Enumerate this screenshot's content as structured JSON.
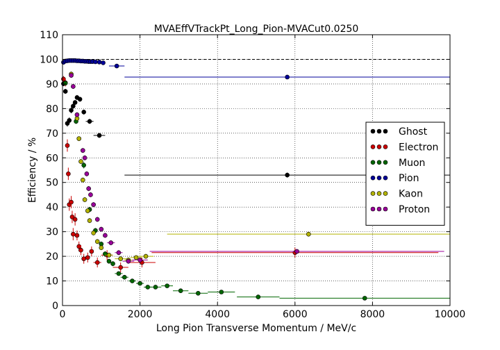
{
  "chart_data": {
    "type": "scatter",
    "title": "MVAEffVTrackPt_Long_Pion-MVACut0.0250",
    "xlabel": "Long Pion Transverse Momentum / MeV/c",
    "ylabel": "Efficiency / %",
    "xlim": [
      0,
      10000
    ],
    "ylim": [
      0,
      110
    ],
    "xticks": [
      "0",
      "2000",
      "4000",
      "6000",
      "8000",
      "10000"
    ],
    "yticks": [
      "0",
      "10",
      "20",
      "30",
      "40",
      "50",
      "60",
      "70",
      "80",
      "90",
      "100",
      "110"
    ],
    "grid": true,
    "reference_line": 100,
    "legend_position": "right",
    "series": [
      {
        "name": "Ghost",
        "color": "#000000",
        "points": [
          {
            "x": 25,
            "y": 90.1,
            "xerr": 25,
            "yerr": 1.0
          },
          {
            "x": 75,
            "y": 87.0,
            "xerr": 25,
            "yerr": 1.0
          },
          {
            "x": 125,
            "y": 74.0,
            "xerr": 25,
            "yerr": 1.3
          },
          {
            "x": 175,
            "y": 75.2,
            "xerr": 25,
            "yerr": 1.2
          },
          {
            "x": 225,
            "y": 79.3,
            "xerr": 25,
            "yerr": 1.2
          },
          {
            "x": 275,
            "y": 81.0,
            "xerr": 25,
            "yerr": 1.0
          },
          {
            "x": 325,
            "y": 82.5,
            "xerr": 25,
            "yerr": 1.0
          },
          {
            "x": 375,
            "y": 84.5,
            "xerr": 25,
            "yerr": 1.0
          },
          {
            "x": 450,
            "y": 83.8,
            "xerr": 50,
            "yerr": 1.0
          },
          {
            "x": 550,
            "y": 78.6,
            "xerr": 50,
            "yerr": 1.0
          },
          {
            "x": 700,
            "y": 74.8,
            "xerr": 100,
            "yerr": 1.0
          },
          {
            "x": 950,
            "y": 69.1,
            "xerr": 150,
            "yerr": 1.0
          },
          {
            "x": 5800,
            "y": 53.0,
            "xerr": 4200,
            "yerr": 1.0
          }
        ]
      },
      {
        "name": "Electron",
        "color": "#cc0000",
        "points": [
          {
            "x": 25,
            "y": 92.0,
            "xerr": 25,
            "yerr": 1.2
          },
          {
            "x": 75,
            "y": 90.5,
            "xerr": 25,
            "yerr": 1.5
          },
          {
            "x": 125,
            "y": 65.0,
            "xerr": 25,
            "yerr": 2.5
          },
          {
            "x": 150,
            "y": 53.5,
            "xerr": 25,
            "yerr": 2.5
          },
          {
            "x": 175,
            "y": 41.0,
            "xerr": 25,
            "yerr": 2.5
          },
          {
            "x": 225,
            "y": 42.0,
            "xerr": 25,
            "yerr": 2.5
          },
          {
            "x": 250,
            "y": 36.0,
            "xerr": 25,
            "yerr": 2.5
          },
          {
            "x": 275,
            "y": 29.0,
            "xerr": 25,
            "yerr": 2.5
          },
          {
            "x": 325,
            "y": 35.0,
            "xerr": 25,
            "yerr": 2.5
          },
          {
            "x": 375,
            "y": 28.5,
            "xerr": 25,
            "yerr": 2.0
          },
          {
            "x": 425,
            "y": 24.0,
            "xerr": 25,
            "yerr": 2.0
          },
          {
            "x": 475,
            "y": 22.5,
            "xerr": 25,
            "yerr": 2.0
          },
          {
            "x": 550,
            "y": 19.0,
            "xerr": 50,
            "yerr": 2.0
          },
          {
            "x": 650,
            "y": 19.5,
            "xerr": 50,
            "yerr": 2.0
          },
          {
            "x": 750,
            "y": 22.0,
            "xerr": 50,
            "yerr": 2.0
          },
          {
            "x": 900,
            "y": 17.5,
            "xerr": 100,
            "yerr": 2.0
          },
          {
            "x": 1150,
            "y": 20.5,
            "xerr": 150,
            "yerr": 2.0
          },
          {
            "x": 1500,
            "y": 15.5,
            "xerr": 200,
            "yerr": 2.0
          },
          {
            "x": 2050,
            "y": 17.5,
            "xerr": 350,
            "yerr": 2.0
          },
          {
            "x": 6000,
            "y": 21.5,
            "xerr": 3700,
            "yerr": 2.0
          }
        ]
      },
      {
        "name": "Muon",
        "color": "#006600",
        "points": [
          {
            "x": 75,
            "y": 90.3,
            "xerr": 25,
            "yerr": 0.8
          },
          {
            "x": 350,
            "y": 74.8,
            "xerr": 25,
            "yerr": 1.0
          },
          {
            "x": 550,
            "y": 57.0,
            "xerr": 50,
            "yerr": 1.3
          },
          {
            "x": 700,
            "y": 39.0,
            "xerr": 50,
            "yerr": 1.0
          },
          {
            "x": 850,
            "y": 30.5,
            "xerr": 50,
            "yerr": 1.0
          },
          {
            "x": 1000,
            "y": 25.0,
            "xerr": 50,
            "yerr": 1.0
          },
          {
            "x": 1100,
            "y": 21.0,
            "xerr": 50,
            "yerr": 1.0
          },
          {
            "x": 1200,
            "y": 18.0,
            "xerr": 50,
            "yerr": 1.0
          },
          {
            "x": 1300,
            "y": 17.0,
            "xerr": 50,
            "yerr": 1.0
          },
          {
            "x": 1450,
            "y": 13.0,
            "xerr": 100,
            "yerr": 0.8
          },
          {
            "x": 1600,
            "y": 11.5,
            "xerr": 100,
            "yerr": 0.8
          },
          {
            "x": 1800,
            "y": 10.0,
            "xerr": 100,
            "yerr": 0.8
          },
          {
            "x": 2000,
            "y": 9.0,
            "xerr": 100,
            "yerr": 0.7
          },
          {
            "x": 2200,
            "y": 7.5,
            "xerr": 100,
            "yerr": 0.7
          },
          {
            "x": 2400,
            "y": 7.5,
            "xerr": 150,
            "yerr": 0.6
          },
          {
            "x": 2700,
            "y": 8.0,
            "xerr": 150,
            "yerr": 0.6
          },
          {
            "x": 3050,
            "y": 6.0,
            "xerr": 200,
            "yerr": 0.5
          },
          {
            "x": 3500,
            "y": 5.0,
            "xerr": 250,
            "yerr": 0.5
          },
          {
            "x": 4100,
            "y": 5.5,
            "xerr": 350,
            "yerr": 0.5
          },
          {
            "x": 5050,
            "y": 3.5,
            "xerr": 550,
            "yerr": 0.4
          },
          {
            "x": 7800,
            "y": 3.0,
            "xerr": 2200,
            "yerr": 0.4
          }
        ]
      },
      {
        "name": "Pion",
        "color": "#000099",
        "points": [
          {
            "x": 25,
            "y": 98.8,
            "xerr": 25,
            "yerr": 0.2
          },
          {
            "x": 75,
            "y": 99.3,
            "xerr": 25,
            "yerr": 0.2
          },
          {
            "x": 125,
            "y": 99.4,
            "xerr": 25,
            "yerr": 0.2
          },
          {
            "x": 175,
            "y": 99.5,
            "xerr": 25,
            "yerr": 0.2
          },
          {
            "x": 225,
            "y": 99.5,
            "xerr": 25,
            "yerr": 0.2
          },
          {
            "x": 275,
            "y": 99.5,
            "xerr": 25,
            "yerr": 0.2
          },
          {
            "x": 325,
            "y": 99.5,
            "xerr": 25,
            "yerr": 0.2
          },
          {
            "x": 375,
            "y": 99.4,
            "xerr": 25,
            "yerr": 0.2
          },
          {
            "x": 425,
            "y": 99.4,
            "xerr": 25,
            "yerr": 0.2
          },
          {
            "x": 475,
            "y": 99.3,
            "xerr": 25,
            "yerr": 0.2
          },
          {
            "x": 525,
            "y": 99.3,
            "xerr": 25,
            "yerr": 0.2
          },
          {
            "x": 575,
            "y": 99.2,
            "xerr": 25,
            "yerr": 0.2
          },
          {
            "x": 625,
            "y": 99.2,
            "xerr": 25,
            "yerr": 0.2
          },
          {
            "x": 675,
            "y": 99.1,
            "xerr": 25,
            "yerr": 0.2
          },
          {
            "x": 725,
            "y": 99.1,
            "xerr": 25,
            "yerr": 0.2
          },
          {
            "x": 775,
            "y": 99.1,
            "xerr": 25,
            "yerr": 0.2
          },
          {
            "x": 850,
            "y": 99.0,
            "xerr": 50,
            "yerr": 0.2
          },
          {
            "x": 950,
            "y": 98.9,
            "xerr": 50,
            "yerr": 0.2
          },
          {
            "x": 1050,
            "y": 98.6,
            "xerr": 50,
            "yerr": 0.2
          },
          {
            "x": 1400,
            "y": 97.3,
            "xerr": 200,
            "yerr": 0.3
          },
          {
            "x": 5800,
            "y": 92.8,
            "xerr": 4200,
            "yerr": 0.5
          }
        ]
      },
      {
        "name": "Kaon",
        "color": "#b3b300",
        "points": [
          {
            "x": 225,
            "y": 94.0,
            "xerr": 25,
            "yerr": 1.0
          },
          {
            "x": 375,
            "y": 76.0,
            "xerr": 25,
            "yerr": 1.0
          },
          {
            "x": 425,
            "y": 67.8,
            "xerr": 25,
            "yerr": 1.0
          },
          {
            "x": 475,
            "y": 58.5,
            "xerr": 25,
            "yerr": 1.0
          },
          {
            "x": 525,
            "y": 51.0,
            "xerr": 25,
            "yerr": 1.0
          },
          {
            "x": 575,
            "y": 43.0,
            "xerr": 25,
            "yerr": 1.0
          },
          {
            "x": 650,
            "y": 38.5,
            "xerr": 50,
            "yerr": 1.0
          },
          {
            "x": 700,
            "y": 34.5,
            "xerr": 50,
            "yerr": 1.0
          },
          {
            "x": 800,
            "y": 29.5,
            "xerr": 50,
            "yerr": 1.0
          },
          {
            "x": 900,
            "y": 26.0,
            "xerr": 50,
            "yerr": 1.0
          },
          {
            "x": 1000,
            "y": 23.5,
            "xerr": 50,
            "yerr": 1.0
          },
          {
            "x": 1200,
            "y": 20.5,
            "xerr": 100,
            "yerr": 1.0
          },
          {
            "x": 1500,
            "y": 19.0,
            "xerr": 150,
            "yerr": 1.0
          },
          {
            "x": 1700,
            "y": 18.5,
            "xerr": 100,
            "yerr": 1.0
          },
          {
            "x": 1900,
            "y": 19.5,
            "xerr": 150,
            "yerr": 1.0
          },
          {
            "x": 2150,
            "y": 20.0,
            "xerr": 200,
            "yerr": 1.0
          },
          {
            "x": 6350,
            "y": 29.0,
            "xerr": 3650,
            "yerr": 1.0
          }
        ]
      },
      {
        "name": "Proton",
        "color": "#990099",
        "points": [
          {
            "x": 225,
            "y": 93.5,
            "xerr": 25,
            "yerr": 1.0
          },
          {
            "x": 275,
            "y": 89.0,
            "xerr": 25,
            "yerr": 1.0
          },
          {
            "x": 375,
            "y": 77.5,
            "xerr": 25,
            "yerr": 1.0
          },
          {
            "x": 525,
            "y": 63.0,
            "xerr": 25,
            "yerr": 1.0
          },
          {
            "x": 575,
            "y": 60.0,
            "xerr": 25,
            "yerr": 1.0
          },
          {
            "x": 625,
            "y": 53.5,
            "xerr": 25,
            "yerr": 1.0
          },
          {
            "x": 675,
            "y": 47.5,
            "xerr": 25,
            "yerr": 1.0
          },
          {
            "x": 725,
            "y": 45.0,
            "xerr": 25,
            "yerr": 1.0
          },
          {
            "x": 800,
            "y": 41.0,
            "xerr": 50,
            "yerr": 1.0
          },
          {
            "x": 900,
            "y": 35.0,
            "xerr": 50,
            "yerr": 1.0
          },
          {
            "x": 1000,
            "y": 31.0,
            "xerr": 50,
            "yerr": 1.0
          },
          {
            "x": 1100,
            "y": 28.5,
            "xerr": 50,
            "yerr": 1.0
          },
          {
            "x": 1250,
            "y": 25.5,
            "xerr": 100,
            "yerr": 1.0
          },
          {
            "x": 1450,
            "y": 21.5,
            "xerr": 100,
            "yerr": 1.0
          },
          {
            "x": 1700,
            "y": 18.0,
            "xerr": 150,
            "yerr": 1.0
          },
          {
            "x": 2000,
            "y": 18.5,
            "xerr": 200,
            "yerr": 1.0
          },
          {
            "x": 6050,
            "y": 22.0,
            "xerr": 3800,
            "yerr": 1.0
          }
        ]
      }
    ]
  }
}
